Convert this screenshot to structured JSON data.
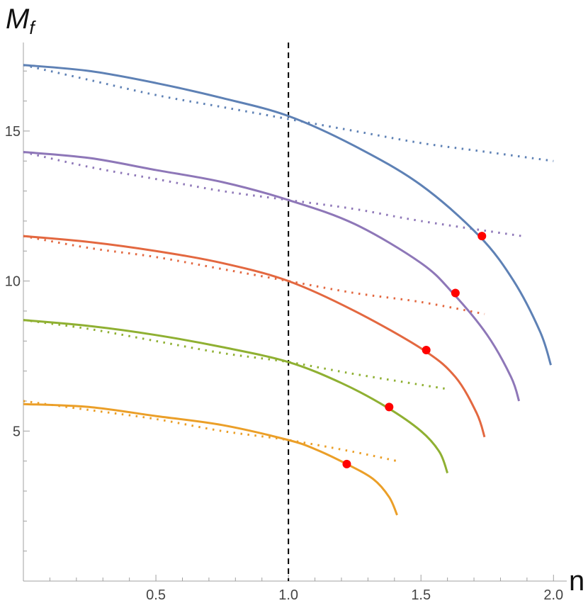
{
  "chart_data": {
    "type": "line",
    "title": "",
    "xlabel": "n",
    "ylabel": "M",
    "ylabel_subscript": "f",
    "xlim": [
      0,
      2.05
    ],
    "ylim": [
      0,
      17.95
    ],
    "xticks": [
      0.5,
      1.0,
      1.5,
      2.0
    ],
    "xtick_labels": [
      "0.5",
      "1.0",
      "1.5",
      "2.0"
    ],
    "yticks": [
      5,
      10,
      15
    ],
    "ytick_labels": [
      "5",
      "10",
      "15"
    ],
    "reference_line": {
      "x": 1.0,
      "style": "dashed",
      "color": "#000000"
    },
    "series": [
      {
        "name": "blue",
        "color": "#5e81b5",
        "solid": {
          "x": [
            0,
            0.25,
            0.5,
            0.75,
            1.0,
            1.25,
            1.5,
            1.72,
            1.85,
            1.95,
            1.99
          ],
          "y": [
            17.2,
            17.0,
            16.6,
            16.1,
            15.5,
            14.5,
            13.2,
            11.5,
            10.0,
            8.3,
            7.2
          ]
        },
        "dotted": {
          "x": [
            0,
            0.25,
            0.5,
            0.75,
            1.0,
            1.25,
            1.5,
            1.75,
            2.0
          ],
          "y": [
            17.2,
            16.7,
            16.2,
            15.8,
            15.4,
            15.0,
            14.6,
            14.3,
            14.0
          ]
        },
        "marker": {
          "x": 1.73,
          "y": 11.5
        }
      },
      {
        "name": "purple",
        "color": "#8e77b8",
        "solid": {
          "x": [
            0,
            0.25,
            0.5,
            0.75,
            1.0,
            1.25,
            1.5,
            1.62,
            1.75,
            1.84,
            1.87
          ],
          "y": [
            14.3,
            14.1,
            13.7,
            13.3,
            12.7,
            11.9,
            10.6,
            9.6,
            8.2,
            6.8,
            6.0
          ]
        },
        "dotted": {
          "x": [
            0,
            0.25,
            0.5,
            0.75,
            1.0,
            1.25,
            1.5,
            1.88
          ],
          "y": [
            14.3,
            13.8,
            13.4,
            13.0,
            12.7,
            12.4,
            12.0,
            11.5
          ]
        },
        "marker": {
          "x": 1.63,
          "y": 9.6
        }
      },
      {
        "name": "red",
        "color": "#e36840",
        "solid": {
          "x": [
            0,
            0.25,
            0.5,
            0.75,
            1.0,
            1.25,
            1.51,
            1.63,
            1.71,
            1.74
          ],
          "y": [
            11.5,
            11.3,
            11.0,
            10.6,
            10.0,
            9.0,
            7.7,
            6.8,
            5.6,
            4.8
          ]
        },
        "dotted": {
          "x": [
            0,
            0.25,
            0.5,
            0.75,
            1.0,
            1.25,
            1.5,
            1.74
          ],
          "y": [
            11.5,
            11.1,
            10.8,
            10.4,
            10.0,
            9.6,
            9.3,
            8.9
          ]
        },
        "marker": {
          "x": 1.52,
          "y": 7.7
        }
      },
      {
        "name": "green",
        "color": "#8fb032",
        "solid": {
          "x": [
            0,
            0.25,
            0.5,
            0.75,
            1.0,
            1.2,
            1.37,
            1.5,
            1.57,
            1.6
          ],
          "y": [
            8.7,
            8.5,
            8.2,
            7.8,
            7.3,
            6.6,
            5.8,
            5.0,
            4.3,
            3.6
          ]
        },
        "dotted": {
          "x": [
            0,
            0.25,
            0.5,
            0.75,
            1.0,
            1.25,
            1.6
          ],
          "y": [
            8.7,
            8.4,
            8.0,
            7.6,
            7.3,
            6.9,
            6.4
          ]
        },
        "marker": {
          "x": 1.38,
          "y": 5.8
        }
      },
      {
        "name": "orange",
        "color": "#eb9f28",
        "solid": {
          "x": [
            0,
            0.25,
            0.5,
            0.75,
            1.0,
            1.1,
            1.22,
            1.32,
            1.38,
            1.41
          ],
          "y": [
            5.9,
            5.8,
            5.5,
            5.2,
            4.7,
            4.4,
            3.9,
            3.4,
            2.8,
            2.2
          ]
        },
        "dotted": {
          "x": [
            0,
            0.25,
            0.5,
            0.75,
            1.0,
            1.25,
            1.41
          ],
          "y": [
            6.0,
            5.7,
            5.4,
            5.0,
            4.7,
            4.3,
            4.0
          ]
        },
        "marker": {
          "x": 1.22,
          "y": 3.9
        }
      }
    ],
    "marker_color": "#ff0000"
  }
}
